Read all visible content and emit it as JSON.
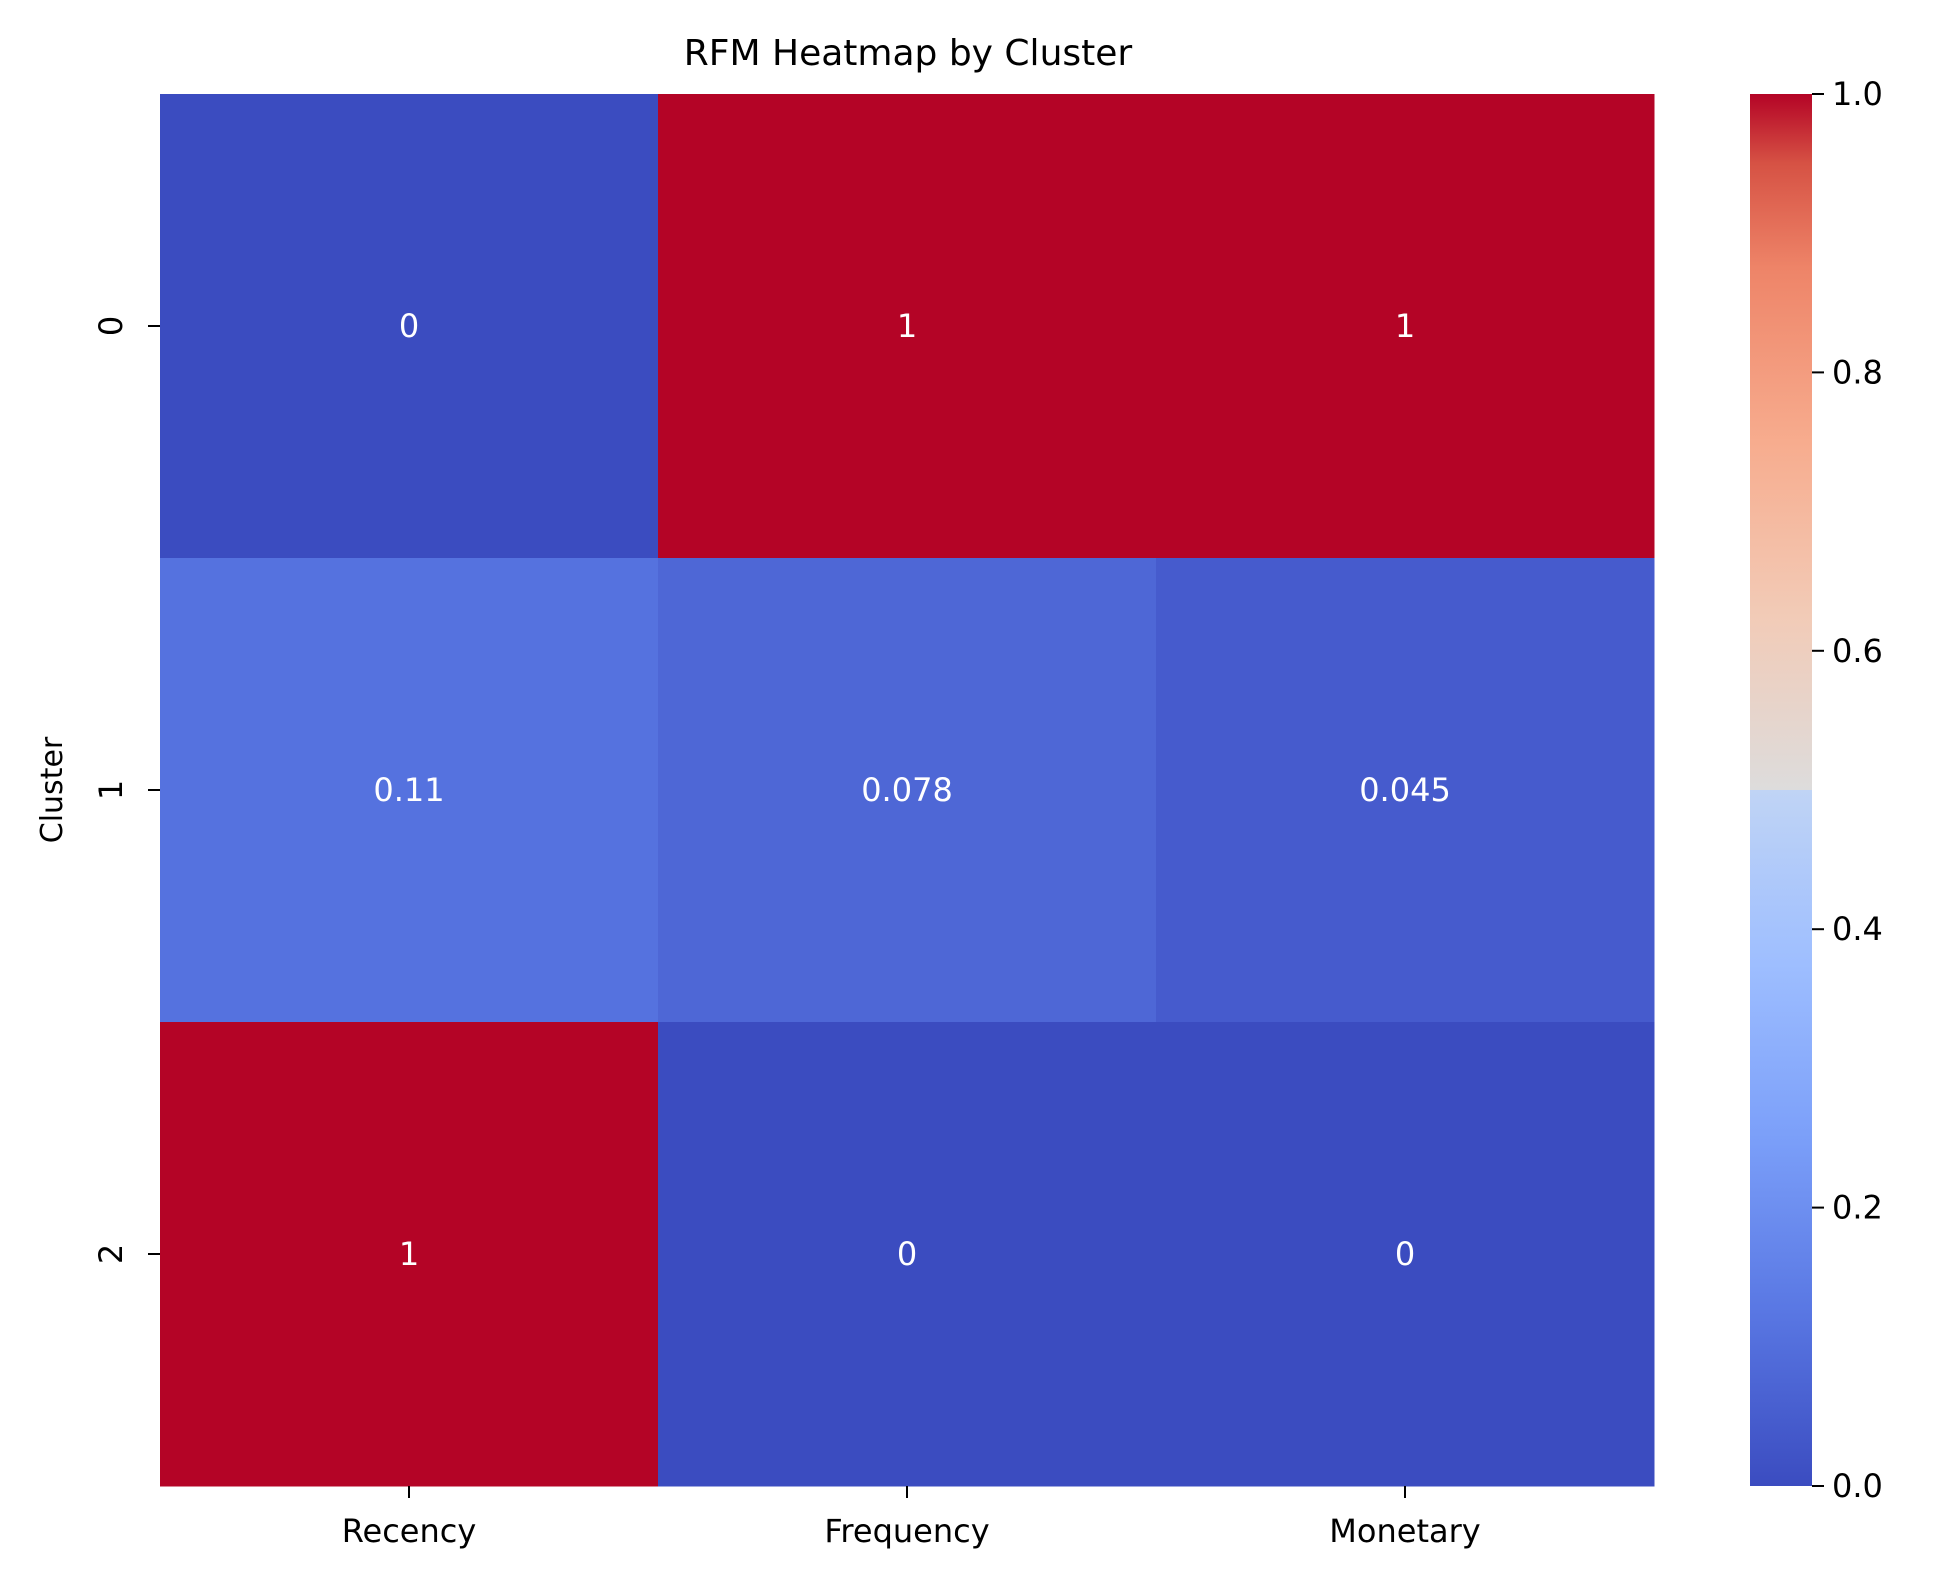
{
  "chart_data": {
    "type": "heatmap",
    "title": "RFM Heatmap by Cluster",
    "xlabel": "",
    "ylabel": "Cluster",
    "x_categories": [
      "Recency",
      "Frequency",
      "Monetary"
    ],
    "y_categories": [
      "0",
      "1",
      "2"
    ],
    "values": [
      [
        0,
        1,
        1
      ],
      [
        0.11,
        0.078,
        0.045
      ],
      [
        1,
        0,
        0
      ]
    ],
    "annotations": [
      [
        "0",
        "1",
        "1"
      ],
      [
        "0.11",
        "0.078",
        "0.045"
      ],
      [
        "1",
        "0",
        "0"
      ]
    ],
    "colormap": "coolwarm",
    "colors": {
      "low": "#3b4cc0",
      "mid": "#dddddd",
      "high": "#b40426"
    },
    "colorbar": {
      "range": [
        0,
        1
      ],
      "ticks": [
        0,
        0.2,
        0.4,
        0.6,
        0.8,
        1
      ],
      "tick_labels": [
        "0.0",
        "0.2",
        "0.4",
        "0.6",
        "0.8",
        "1.0"
      ]
    }
  }
}
